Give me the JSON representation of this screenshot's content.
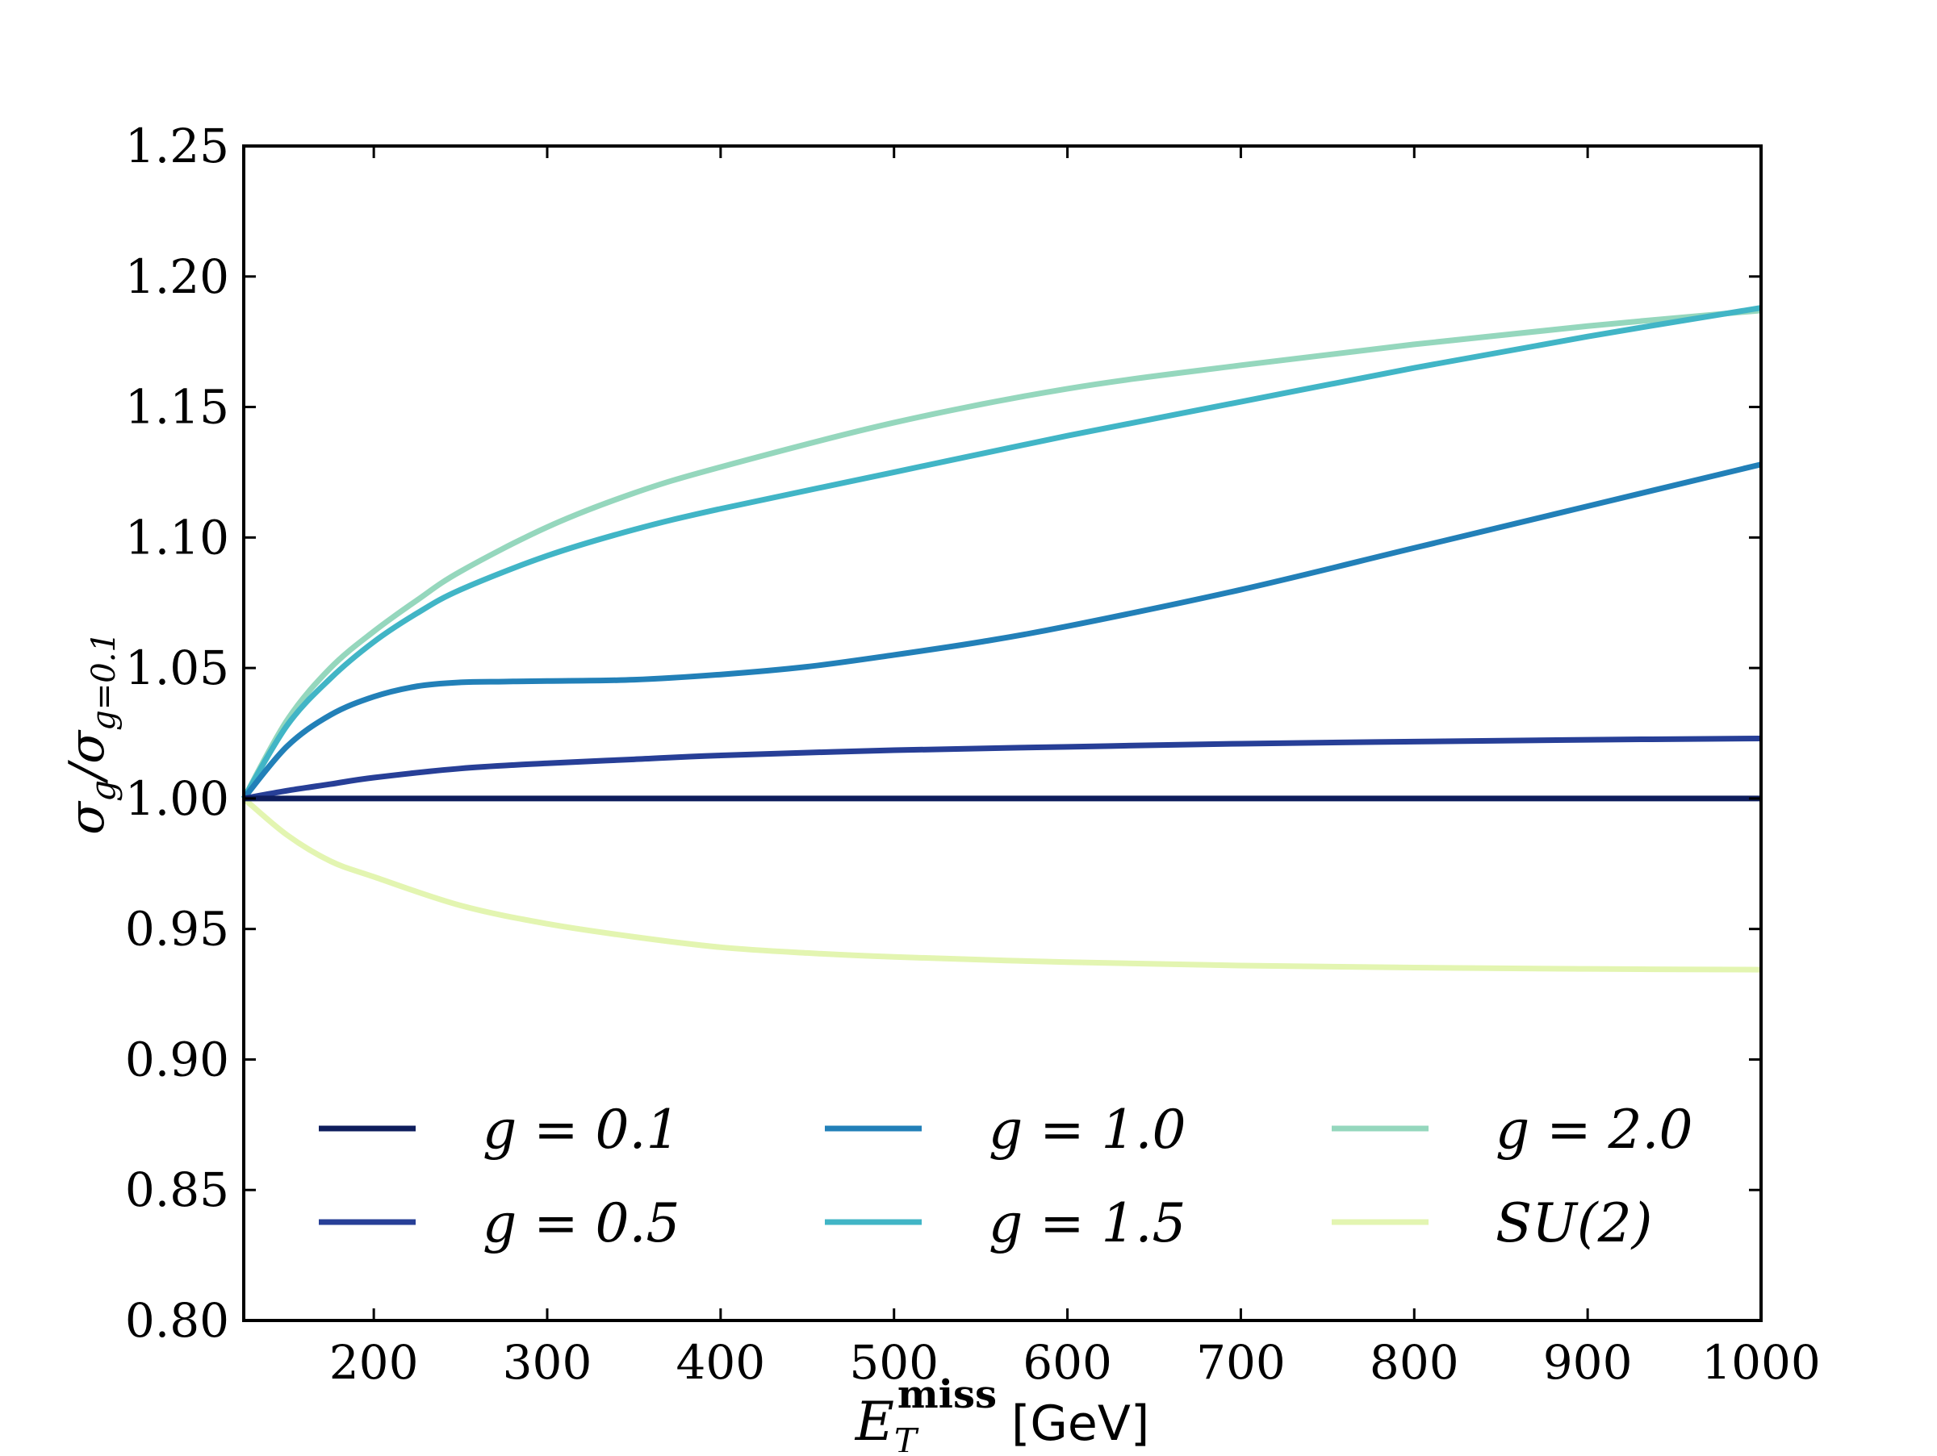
{
  "chart_data": {
    "type": "line",
    "title": "",
    "xlabel": {
      "main": "E",
      "sub": "T",
      "sup": "miss",
      "unit": "[GeV]"
    },
    "ylabel": {
      "main": "σ",
      "sub1": "g",
      "sep": "/σ",
      "sub2": "g=0.1"
    },
    "xlim": [
      125,
      1000
    ],
    "ylim": [
      0.8,
      1.25
    ],
    "xticks": [
      200,
      300,
      400,
      500,
      600,
      700,
      800,
      900,
      1000
    ],
    "xtick_labels": [
      "200",
      "300",
      "400",
      "500",
      "600",
      "700",
      "800",
      "900",
      "1000"
    ],
    "yticks": [
      0.8,
      0.85,
      0.9,
      0.95,
      1.0,
      1.05,
      1.1,
      1.15,
      1.2,
      1.25
    ],
    "ytick_labels": [
      "0.80",
      "0.85",
      "0.90",
      "0.95",
      "1.00",
      "1.05",
      "1.10",
      "1.15",
      "1.20",
      "1.25"
    ],
    "grid": false,
    "legend_position": "lower-center",
    "legend_columns": 3,
    "series": [
      {
        "name": "g = 0.1",
        "color": "#0e1d5c",
        "x": [
          125,
          200,
          300,
          400,
          500,
          600,
          700,
          800,
          900,
          1000
        ],
        "y": [
          1.0,
          1.0,
          1.0,
          1.0,
          1.0,
          1.0,
          1.0,
          1.0,
          1.0,
          1.0
        ]
      },
      {
        "name": "g = 0.5",
        "color": "#273f97",
        "x": [
          125,
          150,
          175,
          200,
          250,
          300,
          350,
          400,
          500,
          600,
          700,
          800,
          900,
          1000
        ],
        "y": [
          1.0,
          1.003,
          1.0055,
          1.008,
          1.0115,
          1.0135,
          1.015,
          1.0165,
          1.0185,
          1.0198,
          1.021,
          1.0218,
          1.0225,
          1.023
        ]
      },
      {
        "name": "g = 1.0",
        "color": "#2280b8",
        "x": [
          125,
          150,
          175,
          200,
          225,
          250,
          275,
          300,
          350,
          400,
          450,
          500,
          550,
          600,
          700,
          800,
          900,
          1000
        ],
        "y": [
          1.0,
          1.02,
          1.032,
          1.039,
          1.043,
          1.0445,
          1.0448,
          1.045,
          1.0455,
          1.0475,
          1.0505,
          1.055,
          1.06,
          1.066,
          1.08,
          1.096,
          1.112,
          1.128
        ]
      },
      {
        "name": "g = 1.5",
        "color": "#41b5c6",
        "x": [
          125,
          150,
          175,
          200,
          225,
          250,
          300,
          350,
          400,
          500,
          600,
          700,
          800,
          900,
          1000
        ],
        "y": [
          1.0,
          1.028,
          1.046,
          1.06,
          1.071,
          1.08,
          1.093,
          1.103,
          1.111,
          1.125,
          1.139,
          1.152,
          1.165,
          1.177,
          1.188
        ]
      },
      {
        "name": "g = 2.0",
        "color": "#95d7bd",
        "x": [
          125,
          150,
          175,
          200,
          225,
          250,
          300,
          350,
          400,
          500,
          600,
          700,
          800,
          900,
          1000
        ],
        "y": [
          1.0,
          1.03,
          1.05,
          1.064,
          1.076,
          1.087,
          1.104,
          1.117,
          1.127,
          1.144,
          1.157,
          1.166,
          1.174,
          1.181,
          1.187
        ]
      },
      {
        "name": "SU(2)",
        "color": "#e3f5b1",
        "x": [
          125,
          150,
          175,
          200,
          250,
          300,
          350,
          400,
          450,
          500,
          600,
          700,
          800,
          900,
          1000
        ],
        "y": [
          1.0,
          0.986,
          0.976,
          0.97,
          0.959,
          0.952,
          0.947,
          0.943,
          0.9408,
          0.9393,
          0.9373,
          0.936,
          0.9352,
          0.9347,
          0.9344
        ]
      }
    ],
    "legend": [
      {
        "label": "g = 0.1",
        "color": "#0e1d5c"
      },
      {
        "label": "g = 0.5",
        "color": "#273f97"
      },
      {
        "label": "g = 1.0",
        "color": "#2280b8"
      },
      {
        "label": "g = 1.5",
        "color": "#41b5c6"
      },
      {
        "label": "g = 2.0",
        "color": "#95d7bd"
      },
      {
        "label": "SU(2)",
        "color": "#e3f5b1"
      }
    ]
  }
}
